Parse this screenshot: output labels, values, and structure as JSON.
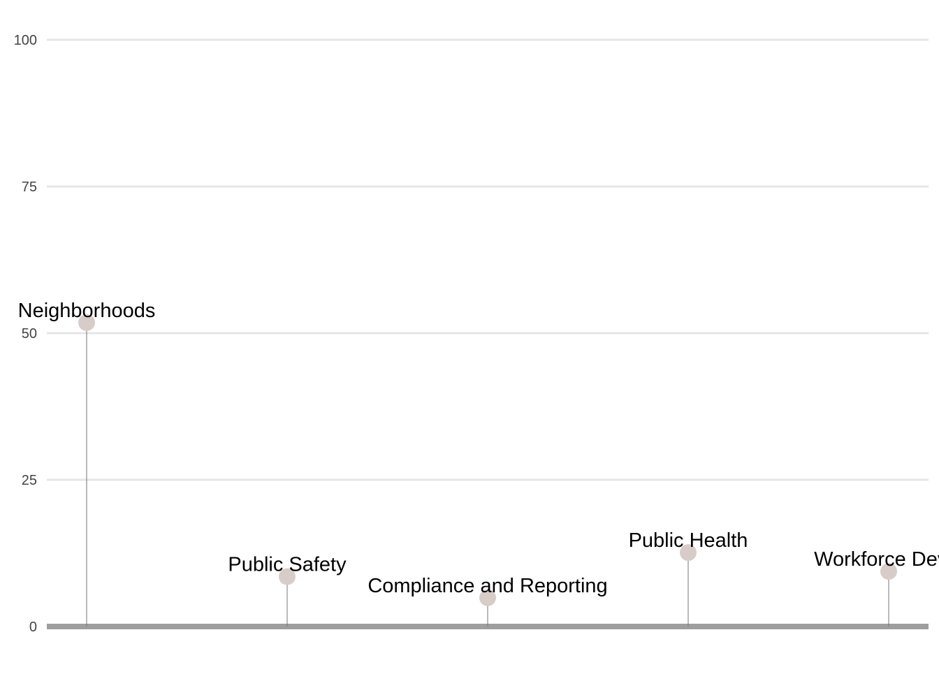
{
  "chart_data": {
    "type": "lollipop",
    "title": "",
    "xlabel": "",
    "ylabel": "",
    "ylim": [
      0,
      100
    ],
    "yticks": [
      0,
      25,
      50,
      75,
      100
    ],
    "grid": true,
    "legend": "none",
    "categories": [
      "Neighborhoods",
      "Public Safety",
      "Compliance and Reporting",
      "Public Health",
      "Workforce Devel"
    ],
    "values": [
      51.8,
      8.5,
      4.9,
      12.6,
      9.4
    ],
    "colors": {
      "marker": "#d7ccc8",
      "stem": "#757575",
      "grid": "#e6e6e6",
      "baseline": "#9e9e9e"
    }
  }
}
